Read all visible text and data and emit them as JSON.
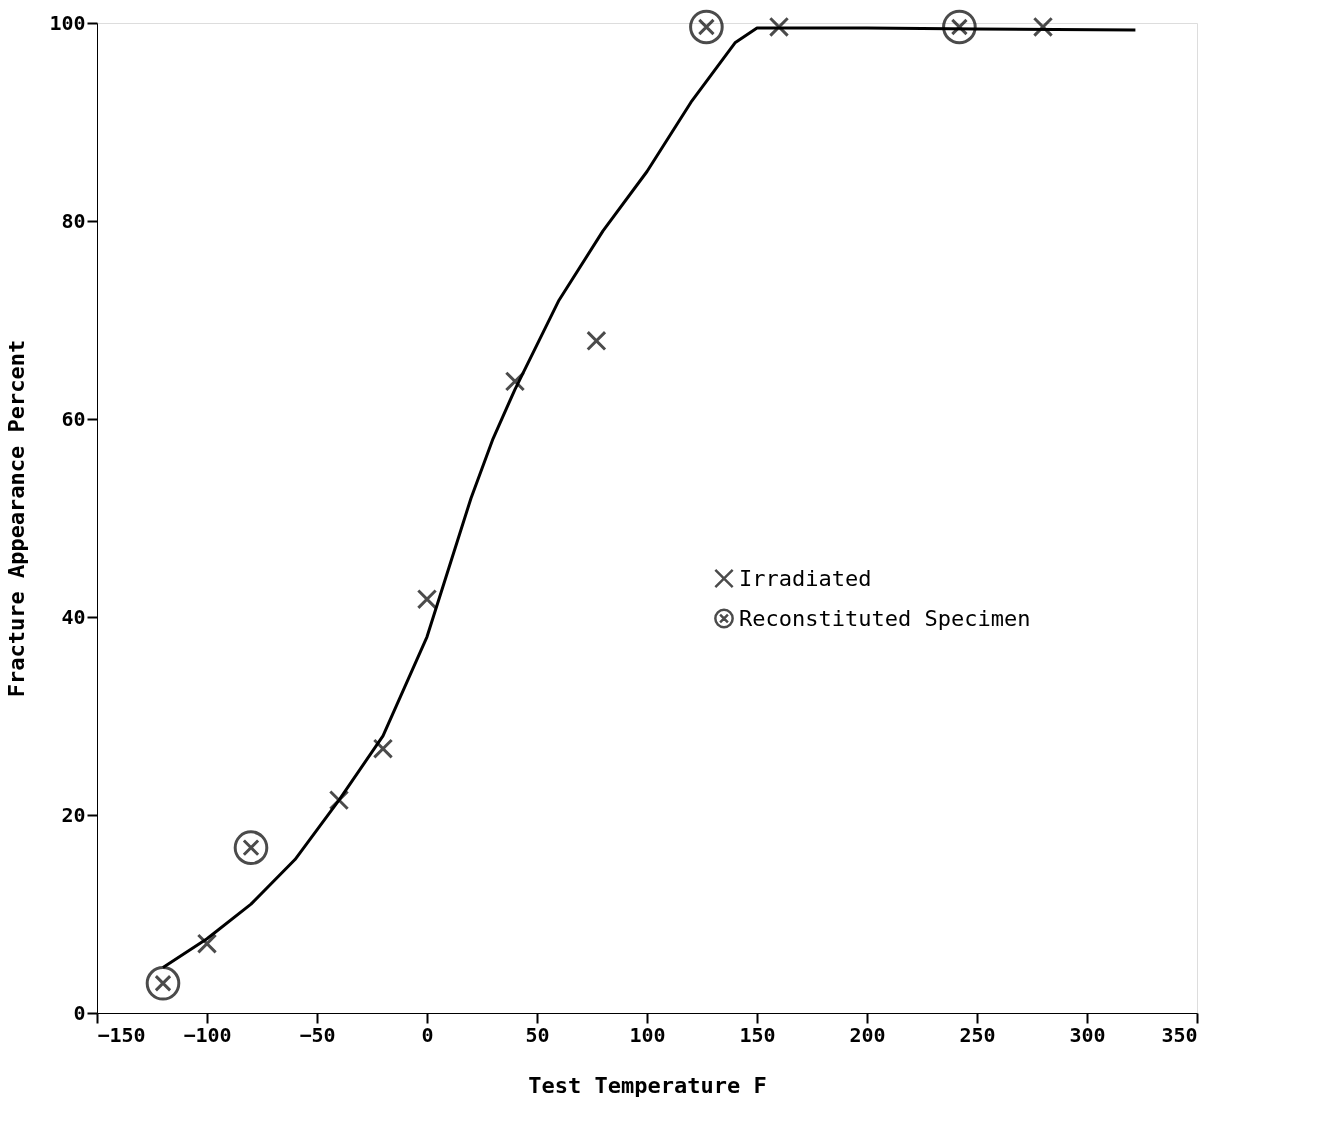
{
  "chart_data": {
    "type": "scatter",
    "xlabel": "Test Temperature  F",
    "ylabel": "Fracture Appearance  Percent",
    "xlim": [
      -150,
      350
    ],
    "ylim": [
      0,
      100
    ],
    "xticks": [
      -150,
      -100,
      -50,
      0,
      50,
      100,
      150,
      200,
      250,
      300,
      350
    ],
    "yticks": [
      0,
      20,
      40,
      60,
      80,
      100
    ],
    "grid": false,
    "legend": "right",
    "series": [
      {
        "name": "Irradiated",
        "marker": "cross",
        "color": "#000000",
        "x": [
          -100,
          -40,
          -20,
          0,
          40,
          77,
          160,
          280
        ],
        "values": [
          7,
          21.5,
          26.7,
          41.8,
          63.8,
          67.9,
          99.6,
          99.6
        ]
      },
      {
        "name": "Reconstituted Specimen",
        "marker": "circle",
        "color": "#000000",
        "x": [
          -120,
          -80,
          127,
          242
        ],
        "values": [
          3,
          16.7,
          99.6,
          99.6
        ]
      },
      {
        "type": "line",
        "line_style": "solid",
        "color": "#000000",
        "x": [
          -120,
          -100,
          -80,
          -60,
          -40,
          -20,
          0,
          10,
          20,
          30,
          40,
          60,
          80,
          100,
          120,
          140,
          150,
          200,
          250,
          322
        ],
        "values": [
          4.6,
          7.5,
          11,
          15.5,
          21.5,
          28,
          38,
          45,
          52,
          58,
          63,
          72,
          79,
          85,
          92,
          98,
          99.5,
          99.5,
          99.4,
          99.3
        ]
      }
    ]
  }
}
